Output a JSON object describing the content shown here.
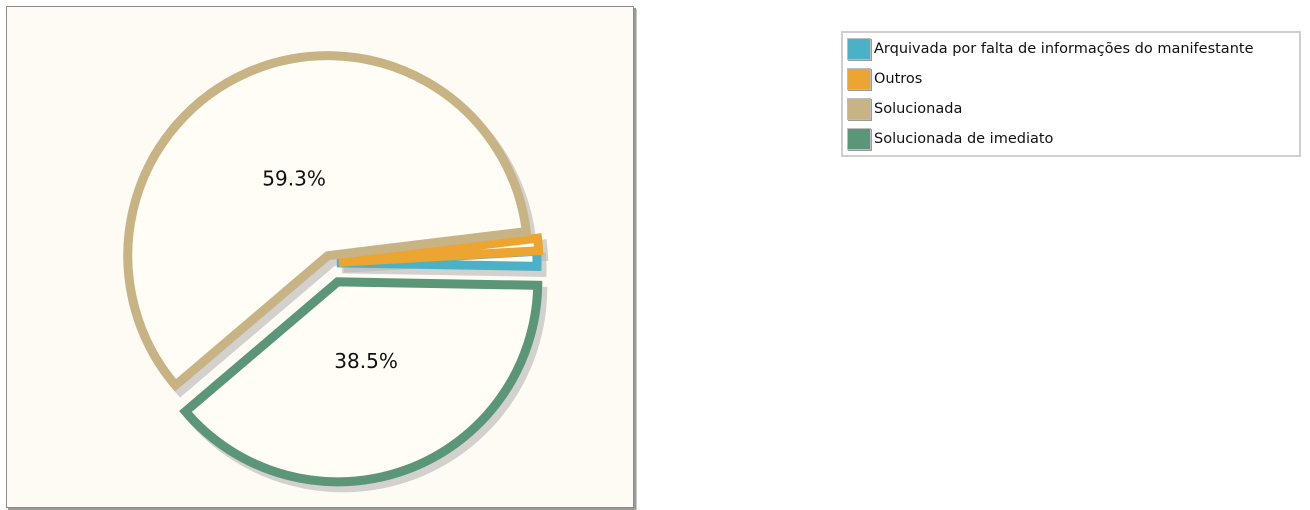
{
  "chart_data": {
    "type": "pie",
    "categories": [
      "Arquivada por falta de informações do manifestante",
      "Outros",
      "Solucionada",
      "Solucionada de imediato"
    ],
    "values": [
      1.2,
      1.0,
      59.3,
      38.5
    ],
    "value_labels": [
      "",
      "",
      "59.3%",
      "38.5%"
    ],
    "colors": [
      "#4bb1c6",
      "#eca530",
      "#c7b384",
      "#5a9677"
    ],
    "legend_position": "top-right",
    "exploded": true
  }
}
